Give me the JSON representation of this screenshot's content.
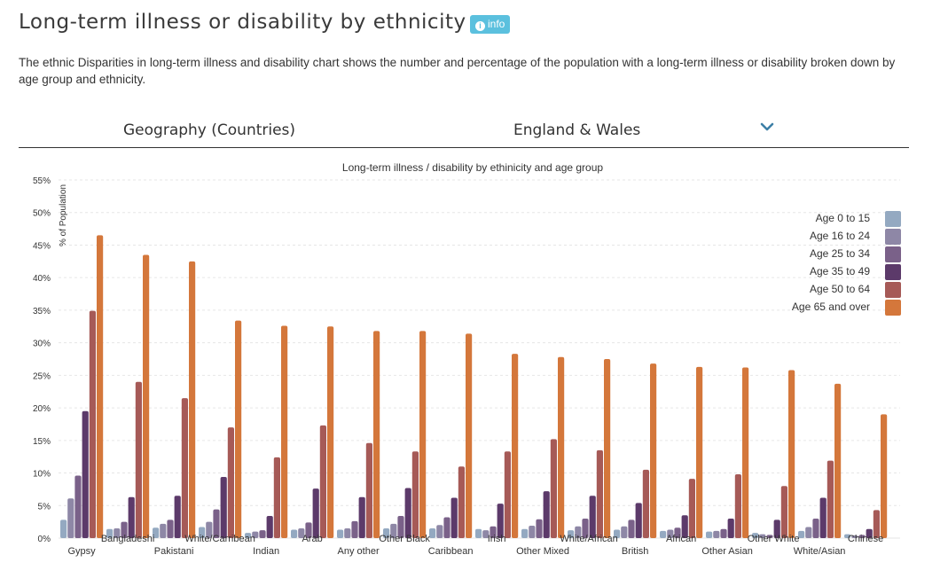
{
  "page": {
    "title": "Long-term illness or disability by ethnicity",
    "info_label": "info",
    "description": "The ethnic Disparities in long-term illness and disability chart shows the number and percentage of the population with a long-term illness or disability broken down by age group and ethnicity."
  },
  "geography": {
    "label": "Geography (Countries)",
    "selected": "England & Wales",
    "chevron_icon": "chevron-down-icon"
  },
  "colors": {
    "accent": "#5bc0de",
    "series": [
      "#94a9c1",
      "#8e87a6",
      "#7a6189",
      "#5c3a6a",
      "#a65a57",
      "#d4773b"
    ]
  },
  "chart_data": {
    "type": "bar",
    "title": "Long-term illness / disability by ethinicity and age group",
    "ylabel": "% of Population",
    "xlabel": "",
    "ylim": [
      0,
      55
    ],
    "yticks": [
      0,
      5,
      10,
      15,
      20,
      25,
      30,
      35,
      40,
      45,
      50,
      55
    ],
    "ytick_labels": [
      "0%",
      "5%",
      "10%",
      "15%",
      "20%",
      "25%",
      "30%",
      "35%",
      "40%",
      "45%",
      "50%",
      "55%"
    ],
    "grid": true,
    "legend_position": "right",
    "categories": [
      "Gypsy",
      "Bangladeshi",
      "Pakistani",
      "White/Carribean",
      "Indian",
      "Arab",
      "Any other",
      "Other Black",
      "Caribbean",
      "Irish",
      "Other Mixed",
      "White/African",
      "British",
      "African",
      "Other Asian",
      "Other White",
      "White/Asian",
      "Chinese"
    ],
    "series": [
      {
        "name": "Age 0 to 15",
        "values": [
          2.8,
          1.4,
          1.6,
          1.7,
          0.8,
          1.3,
          1.3,
          1.5,
          1.5,
          1.4,
          1.4,
          1.2,
          1.3,
          1.1,
          1.0,
          0.8,
          1.1,
          0.6
        ]
      },
      {
        "name": "Age 16 to 24",
        "values": [
          6.1,
          1.5,
          2.2,
          2.5,
          1.0,
          1.5,
          1.5,
          2.2,
          2.0,
          1.2,
          1.9,
          1.8,
          1.8,
          1.3,
          1.1,
          0.6,
          1.7,
          0.4
        ]
      },
      {
        "name": "Age 25 to 34",
        "values": [
          9.6,
          2.5,
          2.8,
          4.4,
          1.2,
          2.4,
          2.6,
          3.4,
          3.2,
          1.8,
          2.9,
          3.0,
          2.8,
          1.6,
          1.4,
          0.5,
          3.0,
          0.5
        ]
      },
      {
        "name": "Age 35 to 49",
        "values": [
          19.5,
          6.3,
          6.5,
          9.4,
          3.4,
          7.6,
          6.3,
          7.7,
          6.2,
          5.3,
          7.2,
          6.5,
          5.4,
          3.5,
          3.0,
          2.8,
          6.2,
          1.4
        ]
      },
      {
        "name": "Age 50 to 64",
        "values": [
          34.9,
          24.0,
          21.5,
          17.0,
          12.4,
          17.3,
          14.6,
          13.3,
          11.0,
          13.3,
          15.2,
          13.5,
          10.5,
          9.1,
          9.8,
          8.0,
          11.9,
          4.3
        ]
      },
      {
        "name": "Age 65 and over",
        "values": [
          46.5,
          43.5,
          42.5,
          33.4,
          32.6,
          32.5,
          31.8,
          31.8,
          31.4,
          28.3,
          27.8,
          27.5,
          26.8,
          26.3,
          26.2,
          25.8,
          23.7,
          19.0
        ]
      }
    ]
  }
}
